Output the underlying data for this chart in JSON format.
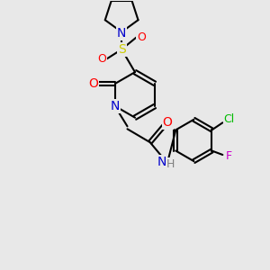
{
  "bg_color": "#e8e8e8",
  "bond_color": "#000000",
  "bond_width": 1.5,
  "atom_colors": {
    "N": "#0000cc",
    "O": "#ff0000",
    "S": "#cccc00",
    "Cl": "#00bb00",
    "F": "#cc00cc",
    "H": "#808080",
    "C": "#000000"
  },
  "font_size": 9
}
